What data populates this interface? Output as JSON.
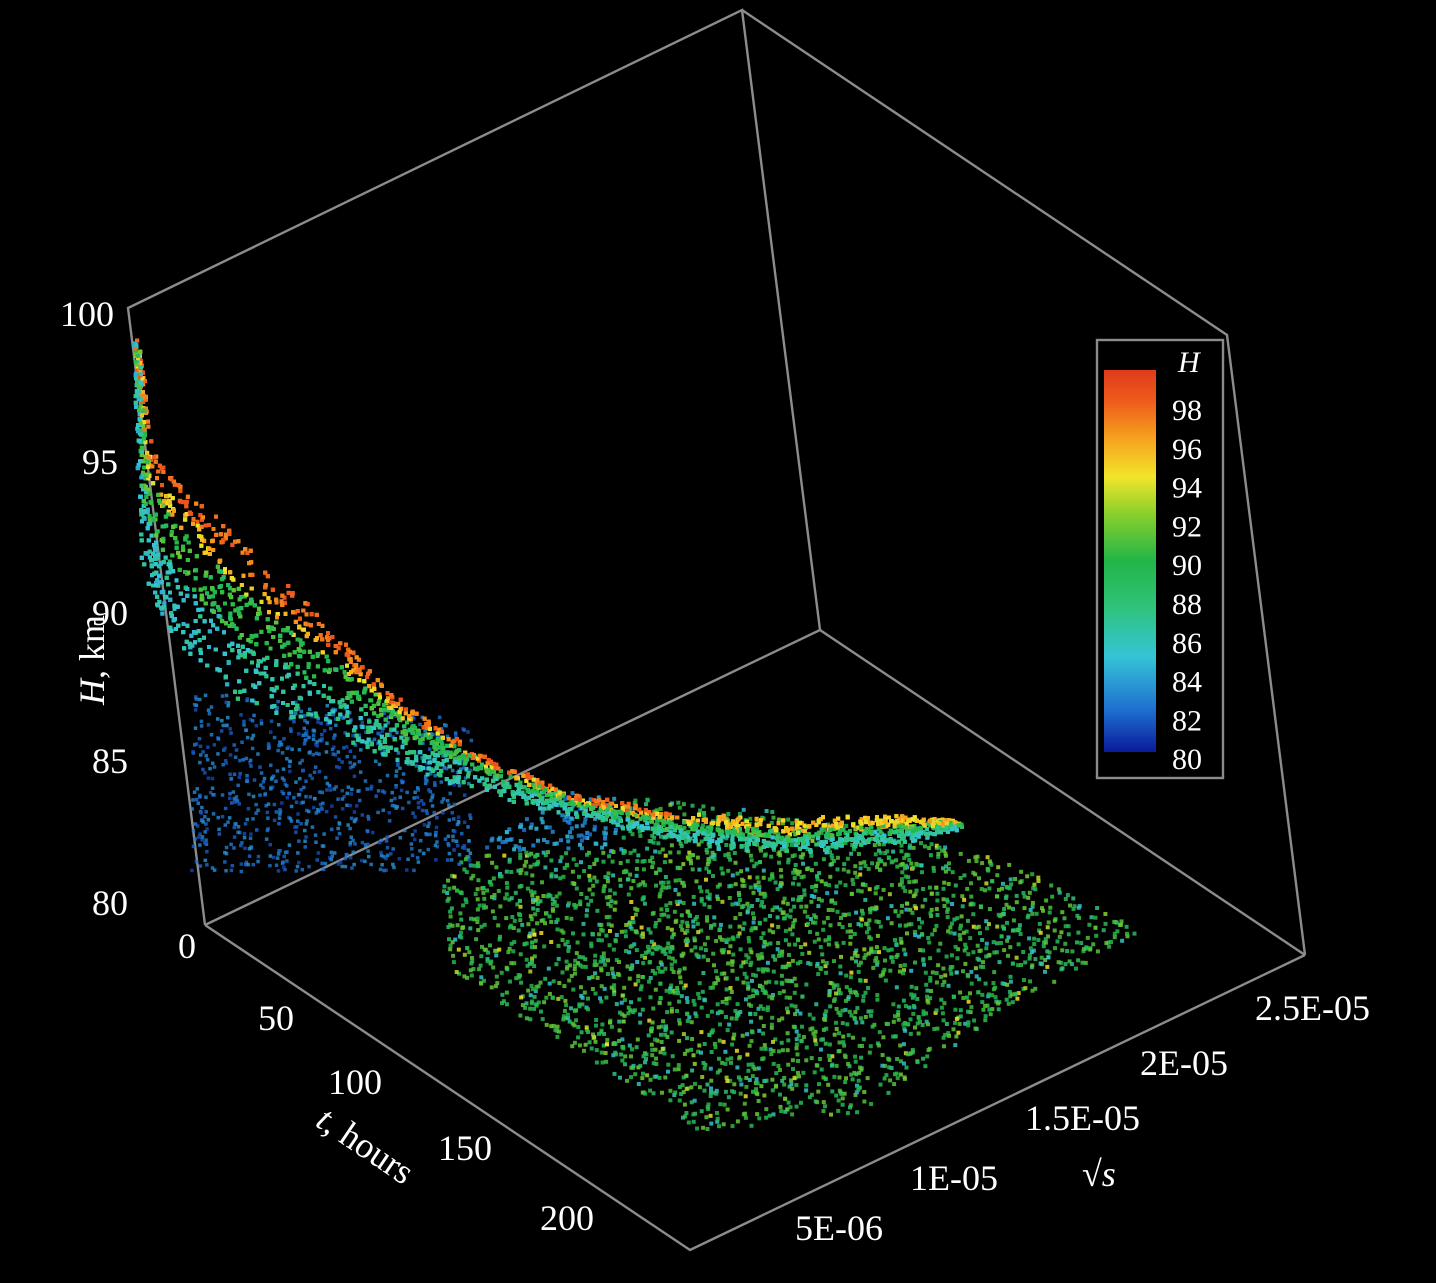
{
  "chart_data": {
    "type": "scatter",
    "subtype": "3d-scatter",
    "title": "",
    "background": "#000000",
    "frame_color": "#8c8c8c",
    "axes": {
      "z": {
        "label_var": "H",
        "label_rest": ", km",
        "range": [
          80,
          100
        ],
        "ticks": [
          "80",
          "85",
          "90",
          "95",
          "100"
        ]
      },
      "t": {
        "label_var": "t",
        "label_rest": ", hours",
        "range": [
          0,
          240
        ],
        "ticks": [
          "0",
          "50",
          "100",
          "150",
          "200"
        ]
      },
      "s": {
        "label": "√s",
        "range": [
          0,
          2.6e-05
        ],
        "ticks": [
          "5E-06",
          "1E-05",
          "1.5E-05",
          "2E-05",
          "2.5E-05"
        ]
      }
    },
    "colorbar": {
      "title": "H",
      "range": [
        80,
        100
      ],
      "ticks": [
        "98",
        "96",
        "94",
        "92",
        "90",
        "88",
        "86",
        "84",
        "82",
        "80"
      ],
      "colors": [
        "#0a1a9a",
        "#1e6fd0",
        "#35c4d6",
        "#2fc37a",
        "#22b548",
        "#86cf2c",
        "#f2e52a",
        "#f6a21e",
        "#ee5a1c",
        "#e03a1a"
      ]
    },
    "series": [
      {
        "type": "surface-band",
        "description_values": "height H versus time t and sqrt(s)",
        "points": [
          [
            0,
            2.5e-06,
            98.5
          ],
          [
            10,
            2.5e-06,
            95.0
          ],
          [
            25,
            2.5e-06,
            92.2
          ],
          [
            50,
            2.5e-06,
            89.6
          ],
          [
            80,
            2.5e-06,
            88.2
          ],
          [
            110,
            2.5e-06,
            88.0
          ],
          [
            140,
            2.5e-06,
            88.8
          ],
          [
            170,
            2.5e-06,
            89.6
          ],
          [
            0,
            1.2e-05,
            96.0
          ],
          [
            25,
            1.2e-05,
            92.8
          ],
          [
            50,
            1.2e-05,
            90.6
          ],
          [
            80,
            1.2e-05,
            89.2
          ],
          [
            110,
            1.2e-05,
            89.0
          ],
          [
            140,
            1.2e-05,
            89.6
          ],
          [
            170,
            1.2e-05,
            90.4
          ],
          [
            0,
            2.2e-05,
            94.0
          ],
          [
            25,
            2.2e-05,
            91.5
          ],
          [
            50,
            2.2e-05,
            90.0
          ],
          [
            80,
            2.2e-05,
            89.5
          ],
          [
            110,
            2.2e-05,
            89.8
          ],
          [
            140,
            2.2e-05,
            90.5
          ]
        ]
      },
      {
        "type": "scatter-cloud",
        "description_values": "dense lower cloud H approx 88-92",
        "t_range": [
          60,
          230
        ],
        "s_range": [
          0,
          2.3e-05
        ],
        "H_range": [
          86,
          93
        ]
      }
    ]
  }
}
